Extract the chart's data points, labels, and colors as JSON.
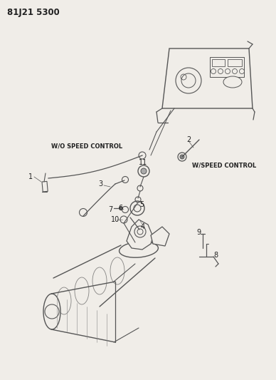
{
  "title": "81J21 5300",
  "bg": "#f5f5f0",
  "lc": "#555555",
  "tc": "#222222",
  "label_wo": "W/O SPEED CONTROL",
  "label_w": "W/SPEED CONTROL",
  "figsize": [
    3.88,
    5.33
  ],
  "dpi": 100
}
